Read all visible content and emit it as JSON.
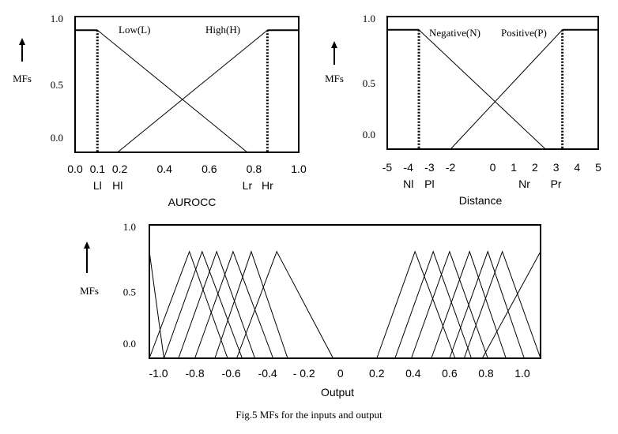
{
  "caption": "Fig.5 MFs for the inputs and output",
  "chart_data": [
    {
      "type": "line",
      "subject": "input-1",
      "xlabel": "AUROCC",
      "ylabel": "MFs",
      "xlim": [
        0.0,
        1.0
      ],
      "ylim": [
        0.0,
        1.0
      ],
      "x_ticks": [
        "0.0",
        "0.1",
        "0.2",
        "0.4",
        "0.6",
        "0.8",
        "1.0"
      ],
      "x_tick_values": [
        0.0,
        0.1,
        0.2,
        0.4,
        0.6,
        0.8,
        1.0
      ],
      "y_ticks": [
        "0.0",
        "0.5",
        "1.0"
      ],
      "y_tick_values": [
        0.0,
        0.5,
        1.0
      ],
      "markers": [
        {
          "label": "Ll",
          "x": 0.1
        },
        {
          "label": "Hl",
          "x": 0.19
        },
        {
          "label": "Lr",
          "x": 0.77
        },
        {
          "label": "Hr",
          "x": 0.86
        }
      ],
      "series": [
        {
          "name": "Low(L)",
          "points": [
            [
              0.0,
              0.9
            ],
            [
              0.1,
              0.9
            ],
            [
              0.77,
              0.0
            ]
          ],
          "edge_x": 0.1
        },
        {
          "name": "High(H)",
          "points": [
            [
              0.19,
              0.0
            ],
            [
              0.86,
              0.9
            ],
            [
              1.0,
              0.9
            ]
          ],
          "edge_x": 0.86
        }
      ],
      "grid": false
    },
    {
      "type": "line",
      "subject": "input-2",
      "xlabel": "Distance",
      "ylabel": "MFs",
      "xlim": [
        -5,
        5
      ],
      "ylim": [
        0.0,
        1.0
      ],
      "x_ticks": [
        "-5",
        "-4",
        "-3",
        "-2",
        "0",
        "1",
        "2",
        "3",
        "4",
        "5"
      ],
      "x_tick_values": [
        -5,
        -4,
        -3,
        -2,
        0,
        1,
        2,
        3,
        4,
        5
      ],
      "y_ticks": [
        "0.0",
        "0.5",
        "1.0"
      ],
      "y_tick_values": [
        0.0,
        0.5,
        1.0
      ],
      "markers": [
        {
          "label": "Nl",
          "x": -4.0
        },
        {
          "label": "Pl",
          "x": -3.0
        },
        {
          "label": "Nr",
          "x": 1.5
        },
        {
          "label": "Pr",
          "x": 3.0
        }
      ],
      "series": [
        {
          "name": "Negative(N)",
          "points": [
            [
              -5.0,
              0.9
            ],
            [
              -3.5,
              0.9
            ],
            [
              2.5,
              0.0
            ]
          ],
          "edge_x": -3.5
        },
        {
          "name": "Positive(P)",
          "points": [
            [
              -2.0,
              0.0
            ],
            [
              3.3,
              0.9
            ],
            [
              5.0,
              0.9
            ]
          ],
          "edge_x": 3.3
        }
      ],
      "grid": false
    },
    {
      "type": "line",
      "subject": "output",
      "xlabel": "Output",
      "ylabel": "MFs",
      "xlim": [
        -1.05,
        1.1
      ],
      "ylim": [
        0.0,
        1.0
      ],
      "x_ticks": [
        "-1.0",
        "-0.8",
        "-0.6",
        "-0.4",
        "- 0.2",
        "0",
        "0.2",
        "0.4",
        "0.6",
        "0.8",
        "1.0"
      ],
      "x_tick_values": [
        -1.0,
        -0.8,
        -0.6,
        -0.4,
        -0.2,
        0.0,
        0.2,
        0.4,
        0.6,
        0.8,
        1.0
      ],
      "y_ticks": [
        "0.0",
        "0.5",
        "1.0"
      ],
      "y_tick_values": [
        0.0,
        0.5,
        1.0
      ],
      "triangles": [
        {
          "points": [
            [
              -1.05,
              0.8
            ],
            [
              -0.97,
              0.0
            ]
          ]
        },
        {
          "points": [
            [
              -1.05,
              0.0
            ],
            [
              -0.83,
              0.8
            ],
            [
              -0.62,
              0.0
            ]
          ]
        },
        {
          "points": [
            [
              -0.97,
              0.0
            ],
            [
              -0.76,
              0.8
            ],
            [
              -0.54,
              0.0
            ]
          ]
        },
        {
          "points": [
            [
              -0.89,
              0.0
            ],
            [
              -0.68,
              0.8
            ],
            [
              -0.47,
              0.0
            ]
          ]
        },
        {
          "points": [
            [
              -0.8,
              0.0
            ],
            [
              -0.59,
              0.8
            ],
            [
              -0.37,
              0.0
            ]
          ]
        },
        {
          "points": [
            [
              -0.69,
              0.0
            ],
            [
              -0.49,
              0.8
            ],
            [
              -0.29,
              0.0
            ]
          ]
        },
        {
          "points": [
            [
              -0.57,
              0.0
            ],
            [
              -0.35,
              0.8
            ],
            [
              -0.04,
              0.0
            ]
          ]
        },
        {
          "points": [
            [
              0.2,
              0.0
            ],
            [
              0.41,
              0.8
            ],
            [
              0.63,
              0.0
            ]
          ]
        },
        {
          "points": [
            [
              0.3,
              0.0
            ],
            [
              0.51,
              0.8
            ],
            [
              0.72,
              0.0
            ]
          ]
        },
        {
          "points": [
            [
              0.39,
              0.0
            ],
            [
              0.6,
              0.8
            ],
            [
              0.81,
              0.0
            ]
          ]
        },
        {
          "points": [
            [
              0.5,
              0.0
            ],
            [
              0.71,
              0.8
            ],
            [
              0.91,
              0.0
            ]
          ]
        },
        {
          "points": [
            [
              0.6,
              0.0
            ],
            [
              0.81,
              0.8
            ],
            [
              1.01,
              0.0
            ]
          ]
        },
        {
          "points": [
            [
              0.68,
              0.0
            ],
            [
              0.89,
              0.8
            ],
            [
              1.1,
              0.0
            ]
          ]
        },
        {
          "points": [
            [
              0.78,
              0.0
            ],
            [
              1.1,
              0.8
            ]
          ]
        }
      ],
      "grid": false
    }
  ]
}
